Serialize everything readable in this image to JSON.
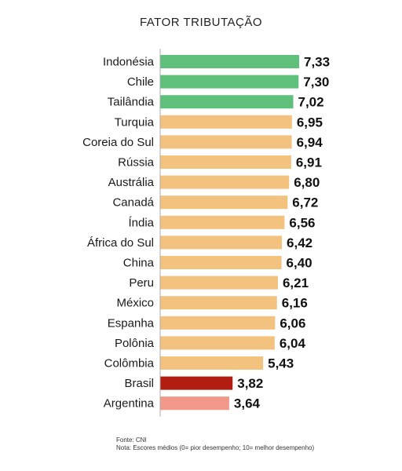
{
  "chart_data": {
    "type": "bar",
    "orientation": "horizontal",
    "title": "FATOR TRIBUTAÇÃO",
    "categories": [
      "Indonésia",
      "Chile",
      "Tailândia",
      "Turquia",
      "Coreia do Sul",
      "Rússia",
      "Austrália",
      "Canadá",
      "Índia",
      "África do Sul",
      "China",
      "Peru",
      "México",
      "Espanha",
      "Polônia",
      "Colômbia",
      "Brasil",
      "Argentina"
    ],
    "values": [
      7.33,
      7.3,
      7.02,
      6.95,
      6.94,
      6.91,
      6.8,
      6.72,
      6.56,
      6.42,
      6.4,
      6.21,
      6.16,
      6.06,
      6.04,
      5.43,
      3.82,
      3.64
    ],
    "value_labels": [
      "7,33",
      "7,30",
      "7,02",
      "6,95",
      "6,94",
      "6,91",
      "6,80",
      "6,72",
      "6,56",
      "6,42",
      "6,40",
      "6,21",
      "6,16",
      "6,06",
      "6,04",
      "5,43",
      "3,82",
      "3,64"
    ],
    "bar_colors": [
      "#5fc07b",
      "#5fc07b",
      "#5fc07b",
      "#f2c27e",
      "#f2c27e",
      "#f2c27e",
      "#f2c27e",
      "#f2c27e",
      "#f2c27e",
      "#f2c27e",
      "#f2c27e",
      "#f2c27e",
      "#f2c27e",
      "#f2c27e",
      "#f2c27e",
      "#f2c27e",
      "#b01c10",
      "#f1988a"
    ],
    "axis_color": "#aaaaaa",
    "xlim": [
      0,
      7.33
    ]
  },
  "footnote": {
    "source": "Fonte: CNI",
    "note": "Nota: Escores médios (0= pior desempenho; 10= melhor desempenho)"
  }
}
